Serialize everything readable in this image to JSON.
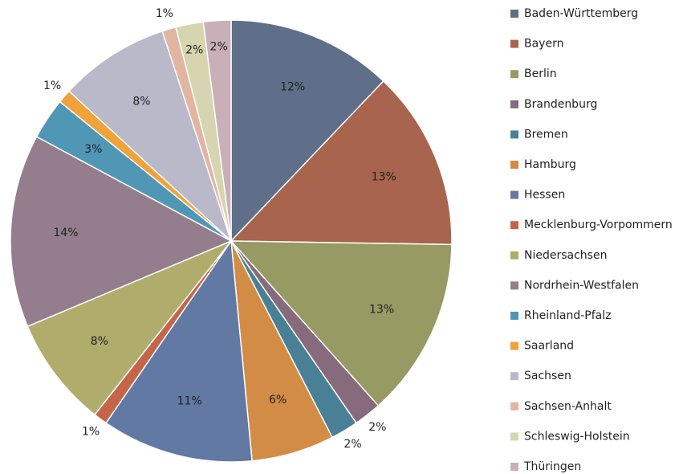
{
  "chart_data": {
    "type": "pie",
    "categories": [
      "Baden-Württemberg",
      "Bayern",
      "Berlin",
      "Brandenburg",
      "Bremen",
      "Hamburg",
      "Hessen",
      "Mecklenburg-Vorpommern",
      "Niedersachsen",
      "Nordrhein-Westfalen",
      "Rheinland-Pfalz",
      "Saarland",
      "Sachsen",
      "Sachsen-Anhalt",
      "Schleswig-Holstein",
      "Thüringen"
    ],
    "values": [
      12,
      13,
      13,
      2,
      2,
      6,
      11,
      1,
      8,
      14,
      3,
      1,
      8,
      1,
      2,
      2
    ],
    "value_labels": [
      "12%",
      "13%",
      "13%",
      "2%",
      "2%",
      "6%",
      "11%",
      "1%",
      "8%",
      "14%",
      "3%",
      "1%",
      "8%",
      "1%",
      "2%",
      "2%"
    ],
    "colors": [
      "#5f6f8a",
      "#a8644c",
      "#979a62",
      "#876a7c",
      "#4a8096",
      "#d38c45",
      "#6179a3",
      "#c4654a",
      "#b0ad6c",
      "#947d8d",
      "#4f97b5",
      "#f0a33a",
      "#b9b9c9",
      "#e2b5a3",
      "#d6d5b0",
      "#c9afb8"
    ],
    "legend": "right"
  }
}
